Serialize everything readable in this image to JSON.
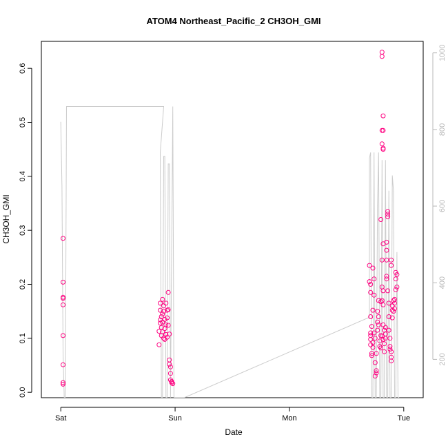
{
  "chart_data": {
    "type": "scatter",
    "title": "ATOM4 Northeast_Pacific_2 CH3OH_GMI",
    "xlabel": "Date",
    "ylabel": "CH3OH_GMI",
    "x_ticks": [
      "Sat",
      "Sun",
      "Mon",
      "Tue"
    ],
    "x_tick_values_days": [
      0,
      1,
      2,
      3
    ],
    "xlim_days": [
      -0.17,
      3.17
    ],
    "y_ticks": [
      0.0,
      0.1,
      0.2,
      0.3,
      0.4,
      0.5,
      0.6
    ],
    "ylim": [
      -0.01,
      0.65
    ],
    "y2_ticks": [
      200,
      400,
      600,
      800,
      1000
    ],
    "y2lim_reversed": [
      1030,
      100
    ],
    "grid": false,
    "colors": {
      "points": "#ff0080",
      "secondary_line": "#cccccc",
      "right_axis": "#b8b8b8"
    },
    "series": [
      {
        "marker": "open-circle",
        "points": [
          [
            0.02,
            0.285
          ],
          [
            0.02,
            0.204
          ],
          [
            0.02,
            0.176
          ],
          [
            0.02,
            0.174
          ],
          [
            0.02,
            0.162
          ],
          [
            0.02,
            0.105
          ],
          [
            0.02,
            0.051
          ],
          [
            0.02,
            0.018
          ],
          [
            0.02,
            0.015
          ],
          [
            0.86,
            0.088
          ],
          [
            0.86,
            0.113
          ],
          [
            0.87,
            0.128
          ],
          [
            0.87,
            0.134
          ],
          [
            0.87,
            0.152
          ],
          [
            0.87,
            0.165
          ],
          [
            0.88,
            0.14
          ],
          [
            0.88,
            0.12
          ],
          [
            0.88,
            0.105
          ],
          [
            0.89,
            0.172
          ],
          [
            0.89,
            0.145
          ],
          [
            0.89,
            0.13
          ],
          [
            0.89,
            0.112
          ],
          [
            0.9,
            0.16
          ],
          [
            0.9,
            0.15
          ],
          [
            0.9,
            0.1
          ],
          [
            0.91,
            0.135
          ],
          [
            0.91,
            0.118
          ],
          [
            0.91,
            0.098
          ],
          [
            0.92,
            0.165
          ],
          [
            0.92,
            0.125
          ],
          [
            0.92,
            0.107
          ],
          [
            0.93,
            0.152
          ],
          [
            0.93,
            0.138
          ],
          [
            0.93,
            0.102
          ],
          [
            0.94,
            0.185
          ],
          [
            0.94,
            0.153
          ],
          [
            0.94,
            0.124
          ],
          [
            0.95,
            0.108
          ],
          [
            0.95,
            0.06
          ],
          [
            0.95,
            0.052
          ],
          [
            0.96,
            0.047
          ],
          [
            0.96,
            0.035
          ],
          [
            0.96,
            0.023
          ],
          [
            0.97,
            0.02
          ],
          [
            0.97,
            0.018
          ],
          [
            0.98,
            0.016
          ],
          [
            2.7,
            0.235
          ],
          [
            2.7,
            0.205
          ],
          [
            2.71,
            0.2
          ],
          [
            2.71,
            0.185
          ],
          [
            2.71,
            0.14
          ],
          [
            2.71,
            0.11
          ],
          [
            2.71,
            0.105
          ],
          [
            2.71,
            0.098
          ],
          [
            2.71,
            0.088
          ],
          [
            2.72,
            0.072
          ],
          [
            2.72,
            0.068
          ],
          [
            2.72,
            0.122
          ],
          [
            2.73,
            0.092
          ],
          [
            2.73,
            0.083
          ],
          [
            2.73,
            0.152
          ],
          [
            2.73,
            0.23
          ],
          [
            2.74,
            0.21
          ],
          [
            2.74,
            0.18
          ],
          [
            2.74,
            0.11
          ],
          [
            2.75,
            0.1
          ],
          [
            2.75,
            0.055
          ],
          [
            2.75,
            0.03
          ],
          [
            2.76,
            0.036
          ],
          [
            2.76,
            0.04
          ],
          [
            2.76,
            0.072
          ],
          [
            2.77,
            0.15
          ],
          [
            2.77,
            0.13
          ],
          [
            2.77,
            0.115
          ],
          [
            2.78,
            0.14
          ],
          [
            2.78,
            0.17
          ],
          [
            2.78,
            0.125
          ],
          [
            2.79,
            0.095
          ],
          [
            2.79,
            0.085
          ],
          [
            2.8,
            0.168
          ],
          [
            2.8,
            0.105
          ],
          [
            2.8,
            0.082
          ],
          [
            2.8,
            0.32
          ],
          [
            2.81,
            0.245
          ],
          [
            2.81,
            0.195
          ],
          [
            2.81,
            0.17
          ],
          [
            2.81,
            0.104
          ],
          [
            2.81,
            0.485
          ],
          [
            2.81,
            0.46
          ],
          [
            2.81,
            0.63
          ],
          [
            2.81,
            0.622
          ],
          [
            2.82,
            0.512
          ],
          [
            2.82,
            0.485
          ],
          [
            2.82,
            0.45
          ],
          [
            2.82,
            0.452
          ],
          [
            2.82,
            0.275
          ],
          [
            2.82,
            0.188
          ],
          [
            2.82,
            0.162
          ],
          [
            2.82,
            0.125
          ],
          [
            2.82,
            0.098
          ],
          [
            2.83,
            0.115
          ],
          [
            2.83,
            0.09
          ],
          [
            2.83,
            0.075
          ],
          [
            2.84,
            0.108
          ],
          [
            2.84,
            0.12
          ],
          [
            2.84,
            0.1
          ],
          [
            2.85,
            0.21
          ],
          [
            2.85,
            0.215
          ],
          [
            2.85,
            0.245
          ],
          [
            2.85,
            0.263
          ],
          [
            2.85,
            0.278
          ],
          [
            2.86,
            0.335
          ],
          [
            2.86,
            0.33
          ],
          [
            2.86,
            0.325
          ],
          [
            2.86,
            0.188
          ],
          [
            2.87,
            0.165
          ],
          [
            2.87,
            0.14
          ],
          [
            2.87,
            0.115
          ],
          [
            2.88,
            0.1
          ],
          [
            2.88,
            0.085
          ],
          [
            2.88,
            0.08
          ],
          [
            2.89,
            0.075
          ],
          [
            2.89,
            0.065
          ],
          [
            2.89,
            0.058
          ],
          [
            2.89,
            0.235
          ],
          [
            2.89,
            0.245
          ],
          [
            2.9,
            0.138
          ],
          [
            2.9,
            0.152
          ],
          [
            2.9,
            0.16
          ],
          [
            2.91,
            0.17
          ],
          [
            2.91,
            0.15
          ],
          [
            2.92,
            0.155
          ],
          [
            2.92,
            0.165
          ],
          [
            2.92,
            0.172
          ],
          [
            2.93,
            0.19
          ],
          [
            2.93,
            0.21
          ],
          [
            2.93,
            0.222
          ],
          [
            2.94,
            0.218
          ],
          [
            2.94,
            0.195
          ]
        ]
      },
      {
        "name_hint": "secondary axis trace (pressure)",
        "line": [
          [
            0.0,
            820
          ],
          [
            0.01,
            650
          ],
          [
            0.02,
            215
          ],
          [
            0.03,
            100
          ],
          [
            0.04,
            100
          ],
          [
            0.05,
            860
          ],
          [
            0.9,
            860
          ],
          [
            0.87,
            740
          ],
          [
            0.88,
            100
          ],
          [
            0.89,
            100
          ],
          [
            0.9,
            730
          ],
          [
            0.91,
            730
          ],
          [
            0.92,
            100
          ],
          [
            0.93,
            100
          ],
          [
            0.94,
            710
          ],
          [
            0.95,
            710
          ],
          [
            0.96,
            100
          ],
          [
            0.98,
            860
          ],
          [
            0.99,
            100
          ],
          [
            1.08,
            100
          ],
          [
            2.7,
            310
          ],
          [
            2.7,
            725
          ],
          [
            2.71,
            740
          ],
          [
            2.72,
            100
          ],
          [
            2.73,
            100
          ],
          [
            2.74,
            740
          ],
          [
            2.75,
            100
          ],
          [
            2.76,
            100
          ],
          [
            2.77,
            600
          ],
          [
            2.78,
            740
          ],
          [
            2.79,
            100
          ],
          [
            2.8,
            100
          ],
          [
            2.81,
            720
          ],
          [
            2.82,
            100
          ],
          [
            2.83,
            100
          ],
          [
            2.84,
            720
          ],
          [
            2.85,
            100
          ],
          [
            2.86,
            100
          ],
          [
            2.87,
            640
          ],
          [
            2.88,
            100
          ],
          [
            2.89,
            100
          ],
          [
            2.9,
            680
          ],
          [
            2.91,
            640
          ],
          [
            2.92,
            100
          ],
          [
            2.93,
            100
          ],
          [
            2.94,
            480
          ],
          [
            2.95,
            100
          ],
          [
            2.96,
            100
          ]
        ]
      }
    ]
  }
}
